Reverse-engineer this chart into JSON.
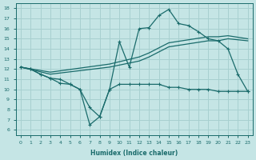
{
  "xlabel": "Humidex (Indice chaleur)",
  "xlim": [
    -0.5,
    23.5
  ],
  "ylim": [
    5.5,
    18.5
  ],
  "xticks": [
    0,
    1,
    2,
    3,
    4,
    5,
    6,
    7,
    8,
    9,
    10,
    11,
    12,
    13,
    14,
    15,
    16,
    17,
    18,
    19,
    20,
    21,
    22,
    23
  ],
  "yticks": [
    6,
    7,
    8,
    9,
    10,
    11,
    12,
    13,
    14,
    15,
    16,
    17,
    18
  ],
  "bg_color": "#c5e5e5",
  "grid_color": "#a8d0d0",
  "line_color": "#1a6b6b",
  "curve1_x": [
    0,
    1,
    2,
    3,
    4,
    5,
    6,
    7,
    8,
    9,
    10,
    11,
    12,
    13,
    14,
    15,
    16,
    17,
    18,
    19,
    20,
    21,
    22,
    23
  ],
  "curve1_y": [
    12.2,
    12.0,
    11.5,
    11.1,
    11.0,
    10.5,
    10.0,
    8.2,
    7.3,
    10.0,
    14.7,
    12.2,
    16.0,
    16.1,
    17.3,
    17.9,
    16.5,
    16.3,
    15.7,
    15.0,
    14.8,
    14.0,
    11.5,
    9.8
  ],
  "curve2_x": [
    0,
    1,
    2,
    3,
    4,
    5,
    6,
    7,
    8,
    9,
    10,
    11,
    12,
    13,
    14,
    15,
    16,
    17,
    18,
    19,
    20,
    21,
    22,
    23
  ],
  "curve2_y": [
    12.2,
    12.0,
    11.5,
    11.1,
    10.6,
    10.5,
    10.0,
    6.5,
    7.3,
    10.0,
    10.5,
    10.5,
    10.5,
    10.5,
    10.5,
    10.2,
    10.2,
    10.0,
    10.0,
    10.0,
    9.8,
    9.8,
    9.8,
    9.8
  ],
  "line3_x": [
    0,
    3,
    9,
    12,
    13,
    15,
    19,
    20,
    21,
    23
  ],
  "line3_y": [
    12.2,
    11.5,
    12.2,
    12.8,
    13.2,
    14.2,
    14.8,
    14.8,
    15.0,
    14.8
  ],
  "line4_x": [
    0,
    3,
    9,
    12,
    13,
    15,
    19,
    20,
    21,
    23
  ],
  "line4_y": [
    12.2,
    11.7,
    12.5,
    13.2,
    13.6,
    14.6,
    15.2,
    15.2,
    15.3,
    15.0
  ]
}
